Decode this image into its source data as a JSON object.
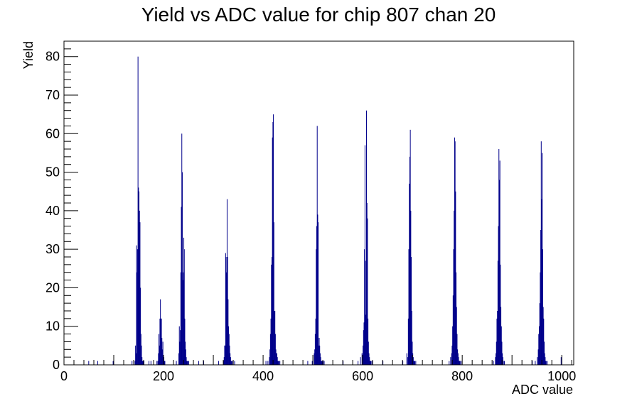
{
  "chart_data": {
    "type": "bar",
    "title": "Yield vs ADC value for chip 807 chan 20",
    "xlabel": "ADC value",
    "ylabel": "Yield",
    "xlim": [
      0,
      1024
    ],
    "ylim": [
      0,
      84
    ],
    "x_ticks": [
      0,
      200,
      400,
      600,
      800,
      1000
    ],
    "y_ticks": [
      0,
      10,
      20,
      30,
      40,
      50,
      60,
      70,
      80
    ],
    "grid": false,
    "legend": "none",
    "bar_color": "#00008b",
    "frame_color": "#000000",
    "series": [
      {
        "x": [
          49,
          67,
          98,
          136,
          142,
          143,
          144,
          145,
          146,
          147,
          148,
          149,
          150,
          151,
          152,
          153,
          154,
          155,
          156,
          157,
          158,
          160,
          170,
          174,
          186,
          188,
          189,
          190,
          191,
          192,
          193,
          194,
          195,
          196,
          197,
          198,
          199,
          200,
          201,
          202,
          225,
          230,
          231,
          232,
          233,
          234,
          235,
          236,
          237,
          238,
          239,
          240,
          241,
          242,
          243,
          244,
          245,
          246,
          247,
          248,
          250,
          270,
          280,
          310,
          320,
          321,
          322,
          323,
          324,
          325,
          326,
          327,
          328,
          329,
          330,
          331,
          332,
          333,
          334,
          335,
          336,
          338,
          342,
          405,
          409,
          412,
          413,
          414,
          415,
          416,
          417,
          418,
          419,
          420,
          421,
          422,
          423,
          424,
          425,
          426,
          427,
          428,
          429,
          430,
          431,
          433,
          489,
          498,
          502,
          503,
          504,
          505,
          506,
          507,
          508,
          509,
          510,
          511,
          512,
          513,
          514,
          515,
          516,
          517,
          518,
          519,
          520,
          522,
          560,
          590,
          595,
          598,
          600,
          601,
          602,
          603,
          604,
          605,
          606,
          607,
          608,
          609,
          610,
          611,
          612,
          613,
          614,
          615,
          616,
          618,
          640,
          680,
          688,
          690,
          691,
          692,
          693,
          694,
          695,
          696,
          697,
          698,
          699,
          700,
          701,
          702,
          703,
          704,
          706,
          773,
          776,
          778,
          779,
          780,
          781,
          782,
          783,
          784,
          785,
          786,
          787,
          788,
          789,
          790,
          791,
          792,
          793,
          794,
          795,
          797,
          862,
          866,
          867,
          868,
          869,
          870,
          871,
          872,
          873,
          874,
          875,
          876,
          877,
          878,
          879,
          880,
          881,
          882,
          884,
          940,
          946,
          950,
          952,
          953,
          954,
          955,
          956,
          957,
          958,
          959,
          960,
          961,
          962,
          963,
          964,
          965,
          966,
          967,
          968,
          970,
          998
        ],
        "values": [
          1,
          1,
          1,
          1,
          1,
          5,
          3,
          31,
          24,
          30,
          80,
          46,
          45,
          40,
          37,
          20,
          8,
          5,
          2,
          1,
          1,
          1,
          1,
          1,
          1,
          1,
          3,
          8,
          5,
          12,
          17,
          12,
          12,
          7,
          4,
          6,
          2,
          2,
          1,
          1,
          1,
          3,
          10,
          6,
          9,
          24,
          41,
          60,
          50,
          22,
          24,
          33,
          30,
          12,
          6,
          4,
          2,
          1,
          1,
          1,
          1,
          1,
          1,
          1,
          1,
          2,
          5,
          5,
          29,
          28,
          24,
          43,
          28,
          17,
          10,
          8,
          5,
          3,
          2,
          1,
          1,
          1,
          1,
          1,
          1,
          2,
          4,
          8,
          12,
          26,
          28,
          59,
          63,
          65,
          37,
          14,
          14,
          8,
          4,
          3,
          3,
          2,
          1,
          1,
          1,
          1,
          1,
          1,
          3,
          4,
          8,
          12,
          30,
          36,
          62,
          39,
          37,
          5,
          7,
          5,
          3,
          2,
          1,
          1,
          1,
          1,
          1,
          1,
          1,
          1,
          2,
          3,
          5,
          9,
          11,
          30,
          57,
          27,
          13,
          66,
          42,
          38,
          12,
          6,
          3,
          2,
          1,
          1,
          1,
          1,
          1,
          1,
          3,
          2,
          12,
          30,
          47,
          54,
          61,
          40,
          28,
          14,
          6,
          3,
          2,
          1,
          1,
          1,
          1,
          1,
          2,
          3,
          5,
          10,
          18,
          30,
          40,
          59,
          58,
          45,
          24,
          15,
          8,
          4,
          3,
          2,
          1,
          1,
          1,
          1,
          1,
          2,
          3,
          6,
          12,
          14,
          27,
          36,
          56,
          48,
          53,
          26,
          15,
          10,
          6,
          3,
          2,
          1,
          1,
          1,
          1,
          2,
          4,
          8,
          10,
          16,
          24,
          35,
          58,
          43,
          55,
          30,
          15,
          12,
          6,
          3,
          2,
          1,
          1,
          1,
          2
        ]
      }
    ]
  }
}
